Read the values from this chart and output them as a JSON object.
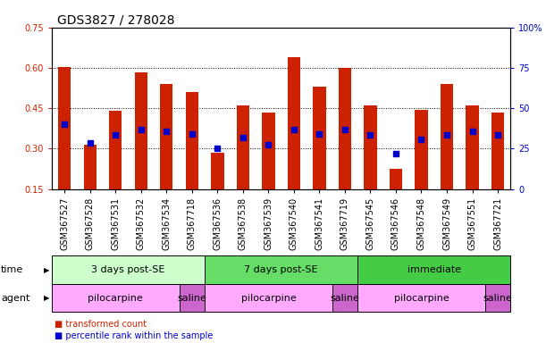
{
  "title": "GDS3827 / 278028",
  "samples": [
    "GSM367527",
    "GSM367528",
    "GSM367531",
    "GSM367532",
    "GSM367534",
    "GSM367718",
    "GSM367536",
    "GSM367538",
    "GSM367539",
    "GSM367540",
    "GSM367541",
    "GSM367719",
    "GSM367545",
    "GSM367546",
    "GSM367548",
    "GSM367549",
    "GSM367551",
    "GSM367721"
  ],
  "bar_tops": [
    0.605,
    0.315,
    0.44,
    0.585,
    0.54,
    0.51,
    0.285,
    0.46,
    0.435,
    0.64,
    0.53,
    0.6,
    0.46,
    0.225,
    0.445,
    0.54,
    0.46,
    0.435
  ],
  "bar_bottoms": [
    0.15,
    0.15,
    0.15,
    0.15,
    0.15,
    0.15,
    0.15,
    0.15,
    0.15,
    0.15,
    0.15,
    0.15,
    0.15,
    0.15,
    0.15,
    0.15,
    0.15,
    0.15
  ],
  "blue_dots": [
    0.39,
    0.32,
    0.35,
    0.37,
    0.365,
    0.355,
    0.3,
    0.34,
    0.315,
    0.37,
    0.355,
    0.37,
    0.35,
    0.28,
    0.335,
    0.35,
    0.365,
    0.35
  ],
  "bar_color": "#CC2200",
  "dot_color": "#0000CC",
  "ylim_left": [
    0.15,
    0.75
  ],
  "ylim_right": [
    0,
    100
  ],
  "yticks_left": [
    0.15,
    0.3,
    0.45,
    0.6,
    0.75
  ],
  "ytick_labels_left": [
    "0.15",
    "0.30",
    "0.45",
    "0.60",
    "0.75"
  ],
  "yticks_right": [
    0,
    25,
    50,
    75,
    100
  ],
  "time_groups": [
    {
      "label": "3 days post-SE",
      "start": 0,
      "end": 6,
      "color": "#ccffcc"
    },
    {
      "label": "7 days post-SE",
      "start": 6,
      "end": 12,
      "color": "#66dd66"
    },
    {
      "label": "immediate",
      "start": 12,
      "end": 18,
      "color": "#44cc44"
    }
  ],
  "agent_groups": [
    {
      "label": "pilocarpine",
      "start": 0,
      "end": 5,
      "color": "#ffaaff"
    },
    {
      "label": "saline",
      "start": 5,
      "end": 6,
      "color": "#cc66cc"
    },
    {
      "label": "pilocarpine",
      "start": 6,
      "end": 11,
      "color": "#ffaaff"
    },
    {
      "label": "saline",
      "start": 11,
      "end": 12,
      "color": "#cc66cc"
    },
    {
      "label": "pilocarpine",
      "start": 12,
      "end": 17,
      "color": "#ffaaff"
    },
    {
      "label": "saline",
      "start": 17,
      "end": 18,
      "color": "#cc66cc"
    }
  ],
  "legend_items": [
    {
      "label": "transformed count",
      "color": "#CC2200"
    },
    {
      "label": "percentile rank within the sample",
      "color": "#0000CC"
    }
  ],
  "bar_width": 0.5,
  "title_fontsize": 10,
  "tick_fontsize": 7,
  "label_fontsize": 8,
  "row_label_fontsize": 8
}
